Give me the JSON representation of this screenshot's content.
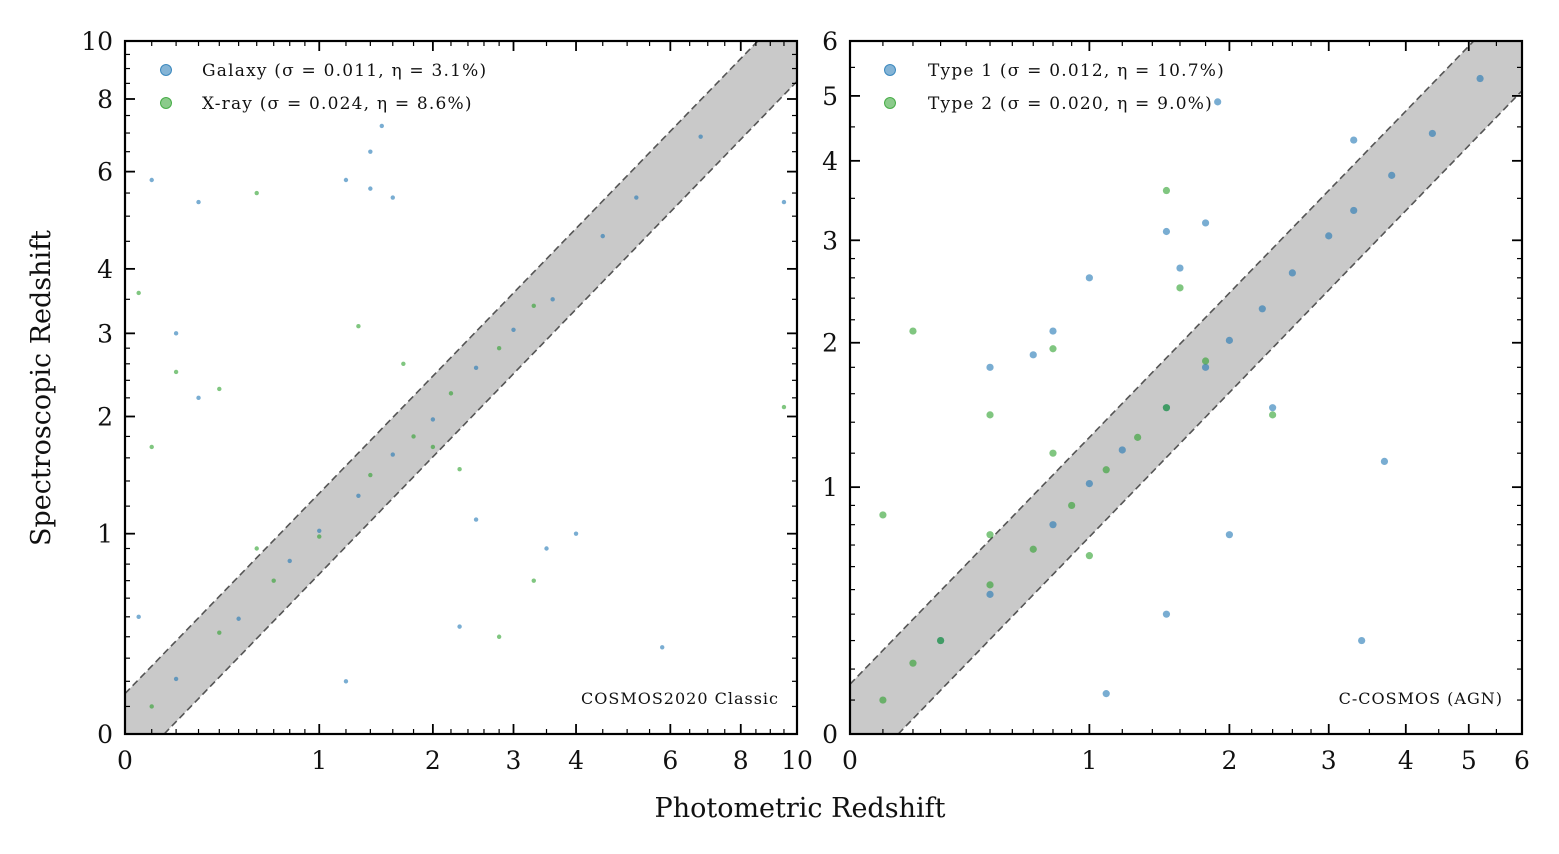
{
  "figure": {
    "xlabel": "Photometric Redshift",
    "ylabel": "Spectroscopic Redshift"
  },
  "chart_data": [
    {
      "type": "scatter",
      "scale": "log(1+z)",
      "xlim": [
        0,
        10
      ],
      "ylim": [
        0,
        10
      ],
      "xticks": [
        0,
        1,
        2,
        3,
        4,
        6,
        8,
        10
      ],
      "yticks": [
        0,
        1,
        2,
        3,
        4,
        6,
        8,
        10
      ],
      "tick_labels": [
        "0",
        "1",
        "2",
        "3",
        "4",
        "6",
        "8",
        "10"
      ],
      "band": "|Δz| / (1+z) ≤ 0.15 (shaded outlier boundary, dashed edges)",
      "annotation": "COSMOS2020 Classic",
      "legend_position": "top-left",
      "series": [
        {
          "name": "Galaxy",
          "label": "Galaxy (σ = 0.011, η = 3.1%)",
          "sigma": 0.011,
          "eta_percent": 3.1,
          "color": "#1f77b4",
          "points": [
            [
              0.2,
              0.21
            ],
            [
              0.5,
              0.49
            ],
            [
              0.8,
              0.82
            ],
            [
              1.0,
              1.02
            ],
            [
              1.3,
              1.28
            ],
            [
              1.6,
              1.63
            ],
            [
              2.0,
              1.97
            ],
            [
              2.5,
              2.55
            ],
            [
              3.0,
              3.05
            ],
            [
              3.6,
              3.5
            ],
            [
              4.5,
              4.6
            ],
            [
              5.2,
              5.4
            ],
            [
              6.8,
              6.9
            ],
            [
              0.1,
              5.8
            ],
            [
              0.3,
              5.3
            ],
            [
              1.2,
              5.8
            ],
            [
              1.4,
              6.5
            ],
            [
              1.5,
              7.2
            ],
            [
              1.4,
              5.6
            ],
            [
              1.6,
              5.4
            ],
            [
              0.2,
              3.0
            ],
            [
              0.3,
              2.2
            ],
            [
              2.5,
              1.1
            ],
            [
              3.5,
              0.9
            ],
            [
              4.0,
              1.0
            ],
            [
              5.8,
              0.35
            ],
            [
              9.5,
              5.3
            ],
            [
              0.05,
              0.5
            ],
            [
              1.2,
              0.2
            ],
            [
              2.3,
              0.45
            ]
          ]
        },
        {
          "name": "X-ray",
          "label": "X-ray (σ = 0.024, η = 8.6%)",
          "sigma": 0.024,
          "eta_percent": 8.6,
          "color": "#2ca02c",
          "points": [
            [
              0.1,
              0.1
            ],
            [
              0.4,
              0.42
            ],
            [
              0.7,
              0.7
            ],
            [
              1.0,
              0.98
            ],
            [
              1.4,
              1.45
            ],
            [
              1.8,
              1.8
            ],
            [
              2.2,
              2.25
            ],
            [
              2.8,
              2.8
            ],
            [
              3.3,
              3.4
            ],
            [
              0.05,
              3.6
            ],
            [
              0.2,
              2.5
            ],
            [
              0.4,
              2.3
            ],
            [
              0.6,
              0.9
            ],
            [
              0.6,
              5.5
            ],
            [
              1.3,
              3.1
            ],
            [
              1.7,
              2.6
            ],
            [
              2.0,
              1.7
            ],
            [
              2.3,
              1.5
            ],
            [
              3.3,
              0.7
            ],
            [
              2.8,
              0.4
            ],
            [
              9.5,
              2.1
            ],
            [
              0.1,
              1.7
            ]
          ]
        }
      ]
    },
    {
      "type": "scatter",
      "scale": "log(1+z)",
      "xlim": [
        0,
        6
      ],
      "ylim": [
        0,
        6
      ],
      "xticks": [
        0,
        1,
        2,
        3,
        4,
        5,
        6
      ],
      "yticks": [
        0,
        1,
        2,
        3,
        4,
        5,
        6
      ],
      "tick_labels": [
        "0",
        "1",
        "2",
        "3",
        "4",
        "5",
        "6"
      ],
      "band": "|Δz| / (1+z) ≤ 0.15 (shaded outlier boundary, dashed edges)",
      "annotation": "C-COSMOS (AGN)",
      "legend_position": "top-left",
      "series": [
        {
          "name": "Type 1",
          "label": "Type 1 (σ = 0.012, η = 10.7%)",
          "sigma": 0.012,
          "eta_percent": 10.7,
          "color": "#1f77b4",
          "points": [
            [
              0.3,
              0.3
            ],
            [
              0.5,
              0.48
            ],
            [
              0.8,
              0.8
            ],
            [
              1.0,
              1.02
            ],
            [
              1.2,
              1.22
            ],
            [
              1.5,
              1.5
            ],
            [
              1.8,
              1.8
            ],
            [
              2.0,
              2.02
            ],
            [
              2.3,
              2.3
            ],
            [
              2.6,
              2.65
            ],
            [
              3.0,
              3.05
            ],
            [
              3.3,
              3.35
            ],
            [
              3.8,
              3.8
            ],
            [
              4.4,
              4.4
            ],
            [
              5.2,
              5.3
            ],
            [
              0.5,
              1.8
            ],
            [
              0.7,
              1.9
            ],
            [
              0.8,
              2.1
            ],
            [
              1.0,
              2.6
            ],
            [
              1.5,
              3.1
            ],
            [
              1.6,
              2.7
            ],
            [
              1.8,
              3.2
            ],
            [
              1.9,
              4.9
            ],
            [
              3.3,
              4.3
            ],
            [
              3.7,
              1.15
            ],
            [
              3.4,
              0.3
            ],
            [
              1.1,
              0.12
            ],
            [
              1.5,
              0.4
            ],
            [
              2.0,
              0.75
            ],
            [
              2.4,
              1.5
            ]
          ]
        },
        {
          "name": "Type 2",
          "label": "Type 2 (σ = 0.020, η = 9.0%)",
          "sigma": 0.02,
          "eta_percent": 9.0,
          "color": "#2ca02c",
          "points": [
            [
              0.1,
              0.1
            ],
            [
              0.2,
              0.22
            ],
            [
              0.3,
              0.3
            ],
            [
              0.5,
              0.52
            ],
            [
              0.7,
              0.68
            ],
            [
              0.9,
              0.9
            ],
            [
              1.1,
              1.1
            ],
            [
              1.3,
              1.3
            ],
            [
              1.5,
              1.5
            ],
            [
              1.8,
              1.85
            ],
            [
              0.1,
              0.85
            ],
            [
              0.2,
              2.1
            ],
            [
              0.5,
              1.45
            ],
            [
              0.8,
              1.95
            ],
            [
              1.5,
              3.6
            ],
            [
              1.6,
              2.5
            ],
            [
              0.8,
              1.2
            ],
            [
              0.5,
              0.75
            ],
            [
              1.0,
              0.65
            ],
            [
              2.4,
              1.45
            ]
          ]
        }
      ]
    }
  ]
}
